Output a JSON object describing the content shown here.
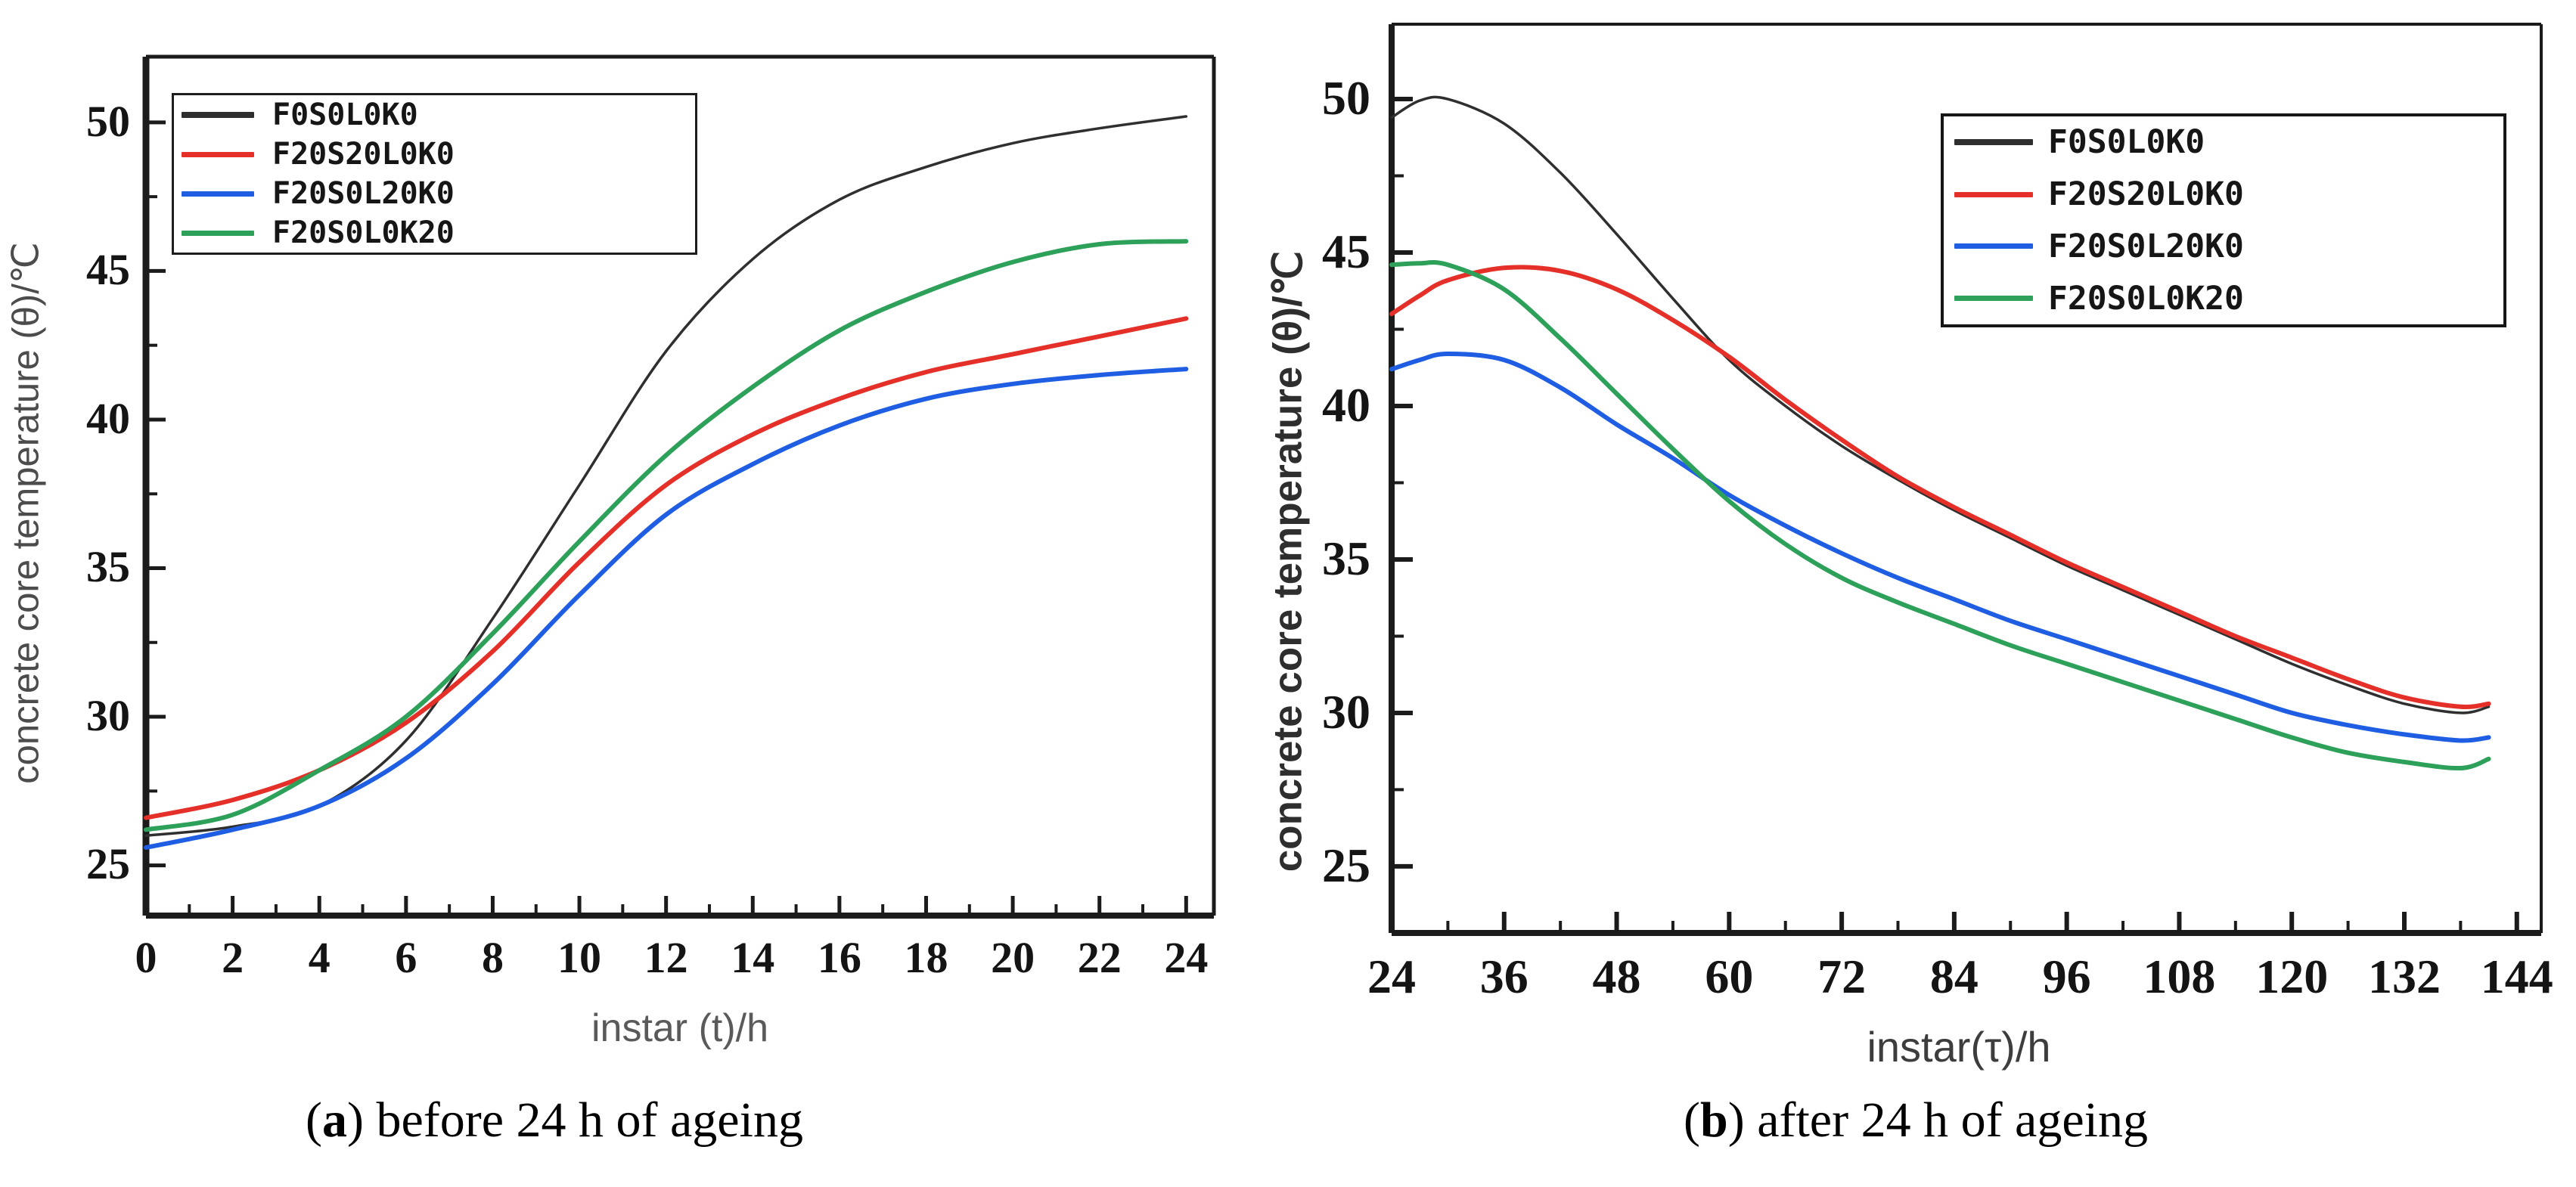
{
  "page": {
    "background": "#ffffff",
    "axis_color": "#1b1b1b"
  },
  "captions": {
    "a": {
      "open": "(",
      "letter": "a",
      "rest": ") before 24 h of ageing"
    },
    "b": {
      "open": "(",
      "letter": "b",
      "rest": ") after 24 h of ageing"
    }
  },
  "chart_data": [
    {
      "id": "a",
      "type": "line",
      "caption": "(a) before 24 h of ageing",
      "xlabel": "instar (t)/h",
      "ylabel": "concrete core temperature (θ)/℃",
      "xlim": [
        0,
        24.64
      ],
      "ylim": [
        23.31,
        52.21
      ],
      "x_ticks_major": [
        0,
        2,
        4,
        6,
        8,
        10,
        12,
        14,
        16,
        18,
        20,
        22,
        24
      ],
      "x_ticks_minor": [
        1,
        3,
        5,
        7,
        9,
        11,
        13,
        15,
        17,
        19,
        21,
        23
      ],
      "y_ticks_major": [
        25,
        30,
        35,
        40,
        45,
        50
      ],
      "y_ticks_minor": [
        27.5,
        32.5,
        37.5,
        42.5,
        47.5
      ],
      "grid": false,
      "legend_position": "upper-left",
      "x": [
        0,
        2,
        4,
        6,
        8,
        10,
        12,
        14,
        16,
        18,
        20,
        22,
        24
      ],
      "series": [
        {
          "name": "F0S0L0K0",
          "color": "#2f2f2f",
          "width": 3.5,
          "values": [
            26.0,
            26.3,
            27.0,
            29.2,
            33.3,
            37.8,
            42.3,
            45.4,
            47.4,
            48.5,
            49.3,
            49.8,
            50.2
          ]
        },
        {
          "name": "F20S20L0K0",
          "color": "#e43028",
          "width": 6,
          "values": [
            26.6,
            27.2,
            28.2,
            29.8,
            32.2,
            35.2,
            37.8,
            39.5,
            40.7,
            41.6,
            42.2,
            42.8,
            43.4
          ]
        },
        {
          "name": "F20S0L20K0",
          "color": "#1f5ee3",
          "width": 6,
          "values": [
            25.6,
            26.2,
            27.0,
            28.6,
            31.1,
            34.1,
            36.8,
            38.5,
            39.8,
            40.7,
            41.2,
            41.5,
            41.7
          ]
        },
        {
          "name": "F20S0L0K20",
          "color": "#2da05a",
          "width": 6,
          "values": [
            26.2,
            26.7,
            28.2,
            30.0,
            32.8,
            35.9,
            38.8,
            41.1,
            43.0,
            44.3,
            45.3,
            45.9,
            46.0
          ]
        }
      ]
    },
    {
      "id": "b",
      "type": "line",
      "caption": "(b) after 24 h of ageing",
      "xlabel": "instar(τ)/h",
      "ylabel": "concrete core temperature (θ)/℃",
      "xlim": [
        24,
        146.6
      ],
      "ylim": [
        22.83,
        52.44
      ],
      "x_ticks_major": [
        24,
        36,
        48,
        60,
        72,
        84,
        96,
        108,
        120,
        132,
        144
      ],
      "x_ticks_minor": [
        30,
        42,
        54,
        66,
        78,
        90,
        102,
        114,
        126,
        138
      ],
      "y_ticks_major": [
        25,
        30,
        35,
        40,
        45,
        50
      ],
      "y_ticks_minor": [
        27.5,
        32.5,
        37.5,
        42.5,
        47.5
      ],
      "grid": false,
      "legend_position": "upper-right",
      "x": [
        24,
        27,
        30,
        36,
        42,
        48,
        54,
        60,
        66,
        72,
        78,
        84,
        90,
        96,
        102,
        108,
        114,
        120,
        126,
        132,
        138,
        141
      ],
      "series": [
        {
          "name": "F0S0L0K0",
          "color": "#2f2f2f",
          "width": 3.5,
          "values": [
            49.4,
            49.95,
            50.0,
            49.2,
            47.6,
            45.6,
            43.5,
            41.5,
            40.0,
            38.7,
            37.6,
            36.6,
            35.7,
            34.8,
            34.0,
            33.2,
            32.4,
            31.6,
            30.9,
            30.3,
            30.0,
            30.2
          ]
        },
        {
          "name": "F20S20L0K0",
          "color": "#e43028",
          "width": 6,
          "values": [
            43.0,
            43.6,
            44.1,
            44.5,
            44.4,
            43.8,
            42.8,
            41.6,
            40.2,
            38.9,
            37.7,
            36.7,
            35.8,
            34.9,
            34.1,
            33.3,
            32.5,
            31.8,
            31.1,
            30.5,
            30.2,
            30.3
          ]
        },
        {
          "name": "F20S0L20K0",
          "color": "#1f5ee3",
          "width": 6,
          "values": [
            41.2,
            41.5,
            41.7,
            41.5,
            40.6,
            39.4,
            38.3,
            37.1,
            36.1,
            35.2,
            34.4,
            33.7,
            33.0,
            32.4,
            31.8,
            31.2,
            30.6,
            30.0,
            29.6,
            29.3,
            29.1,
            29.2
          ]
        },
        {
          "name": "F20S0L0K20",
          "color": "#2da05a",
          "width": 6,
          "values": [
            44.6,
            44.65,
            44.6,
            43.8,
            42.2,
            40.4,
            38.6,
            36.9,
            35.5,
            34.4,
            33.6,
            32.9,
            32.2,
            31.6,
            31.0,
            30.4,
            29.8,
            29.2,
            28.7,
            28.4,
            28.2,
            28.5
          ]
        }
      ]
    }
  ]
}
